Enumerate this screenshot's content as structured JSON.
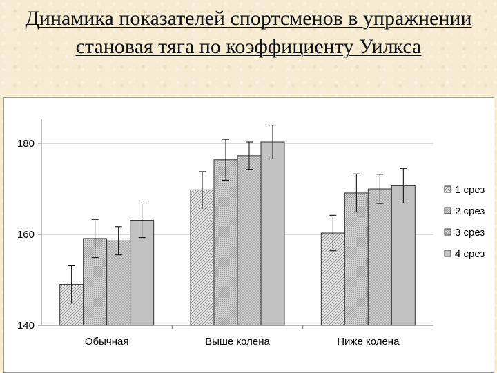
{
  "title": "Динамика показателей спортсменов в упражнении становая тяга по коэффициенту Уилкса",
  "chart_data": {
    "type": "bar",
    "title": "Динамика показателей спортсменов в упражнении становая тяга по коэффициенту Уилкса",
    "xlabel": "",
    "ylabel": "",
    "categories": [
      "Обычная",
      "Выше колена",
      "Ниже колена"
    ],
    "ylim": [
      140,
      180
    ],
    "yticks": [
      140,
      160,
      180
    ],
    "grid": true,
    "legend_position": "right",
    "series": [
      {
        "name": "1 срез",
        "values": [
          149.0,
          169.8,
          160.3
        ],
        "error": [
          4.1,
          4.0,
          3.9
        ],
        "pattern": "diagonal-hatch"
      },
      {
        "name": "2 срез",
        "values": [
          159.1,
          176.4,
          169.1
        ],
        "error": [
          4.2,
          4.5,
          4.2
        ],
        "pattern": "dense-hatch"
      },
      {
        "name": "3 срез",
        "values": [
          158.6,
          177.3,
          170.0
        ],
        "error": [
          3.1,
          3.0,
          3.2
        ],
        "pattern": "cross-hatch"
      },
      {
        "name": "4 срез",
        "values": [
          163.1,
          180.3,
          170.7
        ],
        "error": [
          3.8,
          3.7,
          3.8
        ],
        "pattern": "solid"
      }
    ]
  }
}
